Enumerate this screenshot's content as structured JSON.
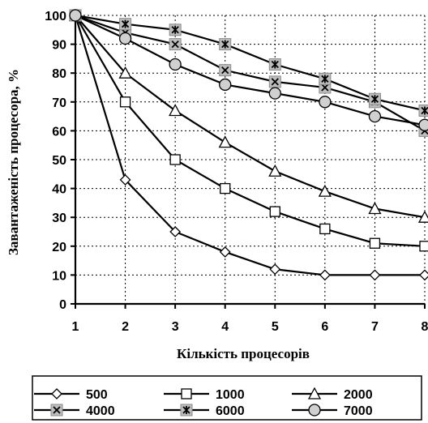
{
  "chart_data": {
    "type": "line",
    "xlabel": "Кількість процесорів",
    "ylabel": "Завантаженість процесора, %",
    "x": [
      1,
      2,
      3,
      4,
      5,
      6,
      7,
      8
    ],
    "xlim": [
      1,
      8
    ],
    "ylim": [
      0,
      100
    ],
    "yticks": [
      0,
      10,
      20,
      30,
      40,
      50,
      60,
      70,
      80,
      90,
      100
    ],
    "grid": true,
    "legend_position": "bottom",
    "series": [
      {
        "name": "500",
        "marker": "diamond",
        "values": [
          100,
          43,
          25,
          18,
          12,
          10,
          10,
          10
        ]
      },
      {
        "name": "1000",
        "marker": "square",
        "values": [
          100,
          70,
          50,
          40,
          32,
          26,
          21,
          20
        ]
      },
      {
        "name": "2000",
        "marker": "triangle",
        "values": [
          100,
          80,
          67,
          56,
          46,
          39,
          33,
          30
        ]
      },
      {
        "name": "4000",
        "marker": "x-square",
        "values": [
          100,
          94,
          90,
          81,
          77,
          75,
          70,
          60
        ]
      },
      {
        "name": "6000",
        "marker": "star-square",
        "values": [
          100,
          97,
          95,
          90,
          83,
          78,
          71,
          67
        ]
      },
      {
        "name": "7000",
        "marker": "circle",
        "values": [
          100,
          92,
          83,
          76,
          73,
          70,
          65,
          62
        ]
      }
    ]
  }
}
